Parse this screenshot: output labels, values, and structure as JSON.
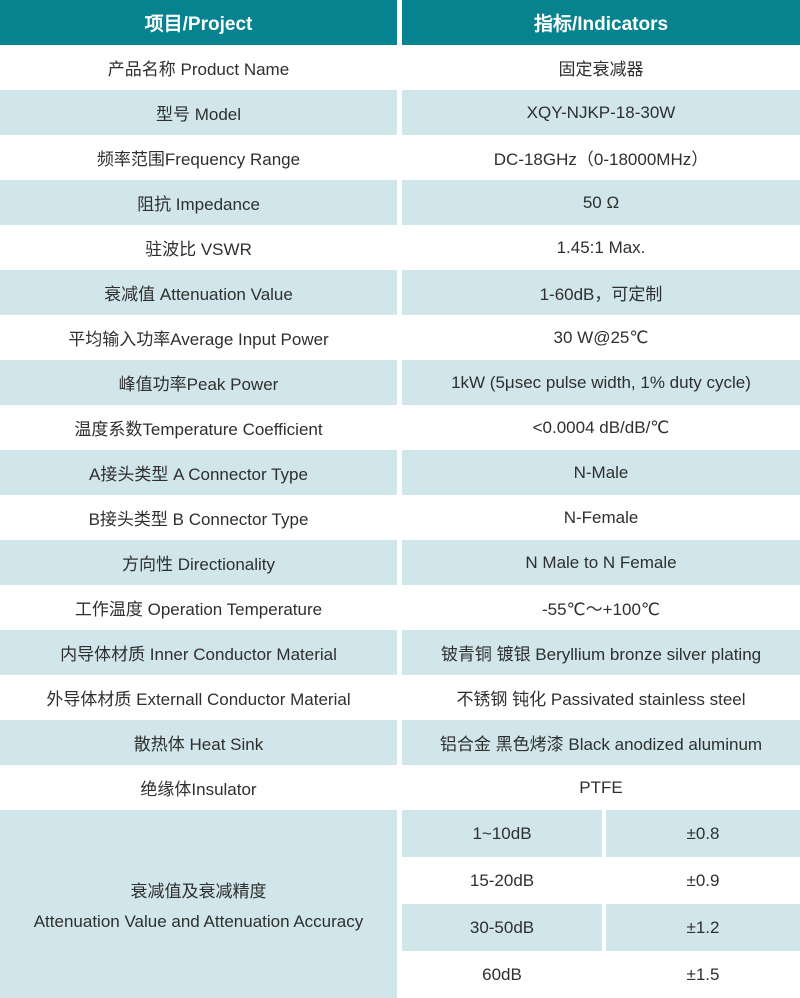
{
  "colors": {
    "header_bg": "#07838F",
    "header_text": "#FFFFFF",
    "row_tint_bg": "#D0E6EA",
    "row_white_bg": "#FFFFFF",
    "body_text": "#2F2F2F"
  },
  "table": {
    "header": {
      "project_col": "项目/Project",
      "indicators_col": "指标/Indicators"
    },
    "rows": [
      {
        "project": "产品名称 Product Name",
        "indicator": "固定衰减器"
      },
      {
        "project": "型号 Model",
        "indicator": "XQY-NJKP-18-30W"
      },
      {
        "project": "频率范围Frequency Range",
        "indicator": "DC-18GHz（0-18000MHz）"
      },
      {
        "project": "阻抗 Impedance",
        "indicator": "50 Ω"
      },
      {
        "project": "驻波比 VSWR",
        "indicator": "1.45:1 Max."
      },
      {
        "project": "衰减值 Attenuation Value",
        "indicator": "1-60dB，可定制"
      },
      {
        "project": "平均输入功率Average Input Power",
        "indicator": "30 W@25℃"
      },
      {
        "project": "峰值功率Peak Power",
        "indicator": "1kW (5μsec pulse width, 1% duty cycle)"
      },
      {
        "project": "温度系数Temperature Coefficient",
        "indicator": "<0.0004 dB/dB/℃"
      },
      {
        "project": "A接头类型 A Connector Type",
        "indicator": "N-Male"
      },
      {
        "project": "B接头类型 B Connector Type",
        "indicator": "N-Female"
      },
      {
        "project": "方向性 Directionality",
        "indicator": "N Male to N Female"
      },
      {
        "project": "工作温度 Operation Temperature",
        "indicator": "-55℃～+100℃"
      },
      {
        "project": "内导体材质 Inner Conductor Material",
        "indicator": "铍青铜 镀银 Beryllium bronze silver plating"
      },
      {
        "project": "外导体材质 Externall Conductor Material",
        "indicator": "不锈钢 钝化 Passivated stainless steel"
      },
      {
        "project": "散热体 Heat Sink",
        "indicator": "铝合金 黑色烤漆 Black anodized aluminum"
      },
      {
        "project": "绝缘体Insulator",
        "indicator": "PTFE"
      }
    ],
    "accuracy_section": {
      "label_cn": "衰减值及衰减精度",
      "label_en": "Attenuation Value and Attenuation Accuracy",
      "rows": [
        {
          "range": "1~10dB",
          "accuracy": "±0.8"
        },
        {
          "range": "15-20dB",
          "accuracy": "±0.9"
        },
        {
          "range": "30-50dB",
          "accuracy": "±1.2"
        },
        {
          "range": "60dB",
          "accuracy": "±1.5"
        }
      ]
    }
  }
}
